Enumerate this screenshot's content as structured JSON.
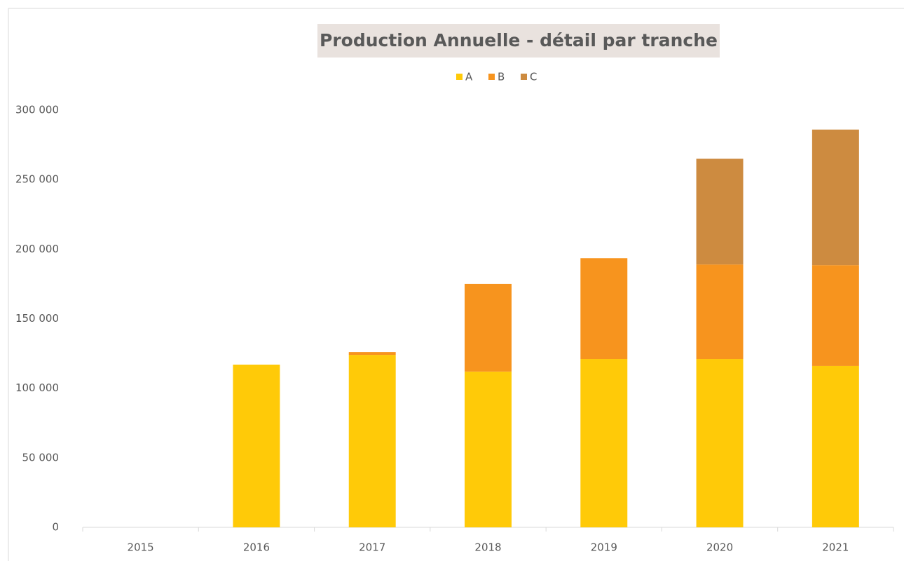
{
  "chart_data": {
    "type": "stacked_bar",
    "title": "Production Annuelle - détail par tranche",
    "categories": [
      "2015",
      "2016",
      "2017",
      "2018",
      "2019",
      "2020",
      "2021"
    ],
    "series": [
      {
        "name": "A",
        "color": "#ffca08",
        "values": [
          0,
          117000,
          124000,
          112000,
          121000,
          121000,
          116000
        ]
      },
      {
        "name": "B",
        "color": "#f7941e",
        "values": [
          0,
          0,
          2000,
          63000,
          72500,
          68000,
          72500
        ]
      },
      {
        "name": "C",
        "color": "#cd8b40",
        "values": [
          0,
          0,
          0,
          0,
          0,
          76000,
          97500
        ]
      }
    ],
    "ylim": [
      0,
      300000
    ],
    "yticks": [
      0,
      {
        "value": 50000,
        "label": "50 000"
      },
      {
        "value": 100000,
        "label": "100 000"
      },
      {
        "value": 150000,
        "label": "150 000"
      },
      {
        "value": 200000,
        "label": "200 000"
      },
      {
        "value": 250000,
        "label": "250 000"
      },
      {
        "value": 300000,
        "label": "300 000"
      }
    ],
    "legend": "top",
    "grid": false
  }
}
